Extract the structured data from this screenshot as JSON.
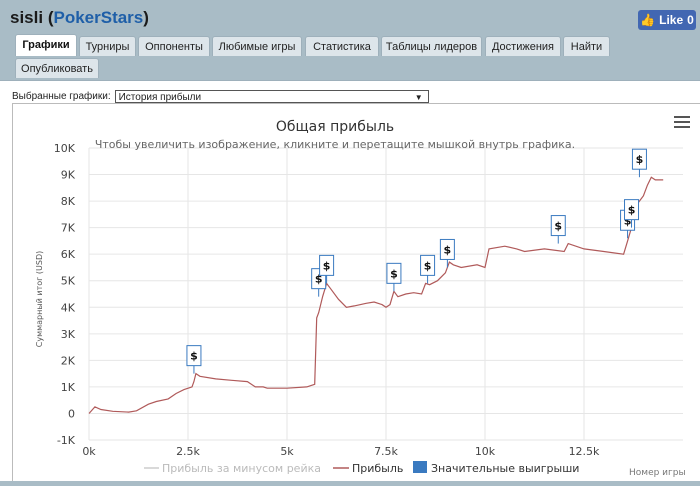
{
  "header": {
    "player": "sisli",
    "site": "PokerStars",
    "like_label": "Like",
    "like_count": "0"
  },
  "tabs": [
    {
      "label": "Графики",
      "active": true
    },
    {
      "label": "Турниры"
    },
    {
      "label": "Оппоненты"
    },
    {
      "label": "Любимые игры"
    },
    {
      "label": "Статистика"
    },
    {
      "label": "Таблицы лидеров"
    },
    {
      "label": "Достижения"
    },
    {
      "label": "Найти"
    },
    {
      "label": "Опубликовать"
    }
  ],
  "selector": {
    "label": "Выбранные графики:",
    "value": "История прибыли"
  },
  "colors": {
    "profit_line": "#b05a5a",
    "rake_line": "#cccccc",
    "marker_border": "#3a7ac0",
    "legend_big": "#3a7ac0"
  },
  "chart_data": {
    "type": "line",
    "title": "Общая прибыль",
    "subtitle": "Чтобы увеличить изображение, кликните и перетащите мышкой внутрь графика.",
    "ylabel": "Суммарный итог (USD)",
    "xlabel": "Номер игры",
    "xlim": [
      0,
      15000
    ],
    "ylim": [
      -1000,
      10000
    ],
    "x_ticks": [
      "0k",
      "2.5k",
      "5k",
      "7.5k",
      "10k",
      "12.5k"
    ],
    "x_tick_values": [
      0,
      2500,
      5000,
      7500,
      10000,
      12500
    ],
    "y_ticks": [
      "-1K",
      "0",
      "1K",
      "2K",
      "3K",
      "4K",
      "5K",
      "6K",
      "7K",
      "8K",
      "9K",
      "10K"
    ],
    "y_tick_values": [
      -1000,
      0,
      1000,
      2000,
      3000,
      4000,
      5000,
      6000,
      7000,
      8000,
      9000,
      10000
    ],
    "grid": true,
    "series": [
      {
        "name": "Прибыль за минусом рейка",
        "values": []
      },
      {
        "name": "Прибыль",
        "x": [
          0,
          150,
          300,
          600,
          1000,
          1200,
          1500,
          1700,
          2000,
          2200,
          2400,
          2600,
          2650,
          2700,
          2800,
          3200,
          3600,
          4000,
          4200,
          4400,
          4500,
          5000,
          5500,
          5700,
          5750,
          5800,
          5900,
          6000,
          6100,
          6300,
          6500,
          6700,
          7000,
          7200,
          7400,
          7500,
          7600,
          7700,
          7800,
          8000,
          8200,
          8400,
          8500,
          8600,
          8800,
          9000,
          9100,
          9200,
          9400,
          9800,
          10000,
          10100,
          10500,
          10800,
          11000,
          11500,
          12000,
          12100,
          12500,
          13000,
          13500,
          13600,
          13700,
          13800,
          13900,
          14000,
          14100,
          14200,
          14300,
          14500
        ],
        "values": [
          0,
          250,
          150,
          80,
          50,
          100,
          350,
          450,
          550,
          750,
          900,
          1000,
          1200,
          1500,
          1400,
          1300,
          1250,
          1200,
          1000,
          1000,
          950,
          950,
          1000,
          1100,
          3600,
          3800,
          4400,
          4900,
          4700,
          4300,
          4000,
          4050,
          4150,
          4200,
          4100,
          4000,
          4100,
          4600,
          4400,
          4500,
          4550,
          4500,
          4900,
          4850,
          5000,
          5300,
          5700,
          5600,
          5500,
          5600,
          5500,
          6200,
          6300,
          6200,
          6100,
          6200,
          6100,
          6400,
          6200,
          6100,
          6000,
          6500,
          7000,
          7800,
          8000,
          8200,
          8600,
          8900,
          8800,
          8800
        ]
      }
    ],
    "significant_wins": {
      "name": "Значительные выигрыши",
      "x": [
        2650,
        5800,
        6000,
        7700,
        8550,
        9050,
        11850,
        13600,
        13700,
        13900
      ],
      "y": [
        1500,
        4400,
        4900,
        4600,
        4900,
        5500,
        6400,
        6600,
        7000,
        8900
      ],
      "label": "$"
    }
  }
}
